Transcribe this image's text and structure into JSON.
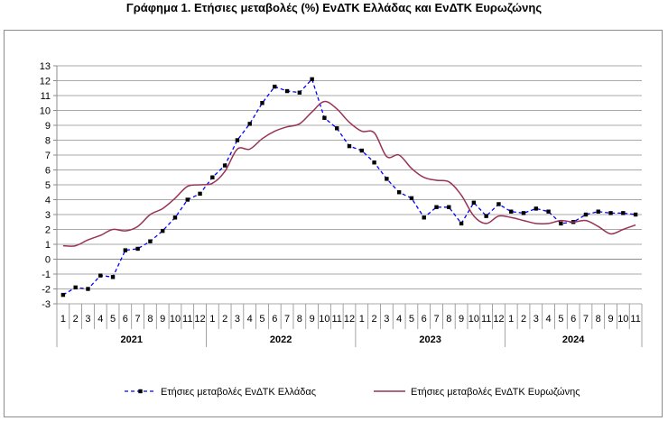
{
  "chart_data": {
    "type": "line",
    "title": "Γράφημα 1. Ετήσιες μεταβολές (%) ΕνΔΤΚ Ελλάδας και ΕνΔΤΚ Ευρωζώνης",
    "xlabel": "",
    "ylabel": "",
    "ylim": [
      -3,
      13
    ],
    "yticks": [
      -3,
      -2,
      -1,
      0,
      1,
      2,
      3,
      4,
      5,
      6,
      7,
      8,
      9,
      10,
      11,
      12,
      13
    ],
    "grid": true,
    "legend_position": "bottom",
    "categories": [
      "1",
      "2",
      "3",
      "4",
      "5",
      "6",
      "7",
      "8",
      "9",
      "10",
      "11",
      "12",
      "1",
      "2",
      "3",
      "4",
      "5",
      "6",
      "7",
      "8",
      "9",
      "10",
      "11",
      "12",
      "1",
      "2",
      "3",
      "4",
      "5",
      "6",
      "7",
      "8",
      "9",
      "10",
      "11",
      "12",
      "1",
      "2",
      "3",
      "4",
      "5",
      "6",
      "7",
      "8",
      "9",
      "10",
      "11"
    ],
    "year_groups": [
      {
        "label": "2021",
        "count": 12
      },
      {
        "label": "2022",
        "count": 12
      },
      {
        "label": "2023",
        "count": 12
      },
      {
        "label": "2024",
        "count": 11
      }
    ],
    "series": [
      {
        "name": "Ετήσιες μεταβολές ΕνΔΤΚ Ελλάδας",
        "color": "#0000ff",
        "style": "dashed-markers",
        "values": [
          -2.4,
          -1.9,
          -2.0,
          -1.1,
          -1.2,
          0.6,
          0.7,
          1.2,
          1.9,
          2.8,
          4.0,
          4.4,
          5.5,
          6.3,
          8.0,
          9.1,
          10.5,
          11.6,
          11.3,
          11.2,
          12.1,
          9.5,
          8.8,
          7.6,
          7.3,
          6.5,
          5.4,
          4.5,
          4.1,
          2.8,
          3.5,
          3.5,
          2.4,
          3.8,
          2.9,
          3.7,
          3.2,
          3.1,
          3.4,
          3.2,
          2.4,
          2.5,
          3.0,
          3.2,
          3.1,
          3.1,
          3.0
        ]
      },
      {
        "name": "Ετήσιες μεταβολές ΕνΔΤΚ Ευρωζώνης",
        "color": "#993355",
        "style": "solid",
        "values": [
          0.9,
          0.9,
          1.3,
          1.6,
          2.0,
          1.9,
          2.2,
          3.0,
          3.4,
          4.1,
          4.9,
          5.0,
          5.1,
          5.9,
          7.4,
          7.4,
          8.1,
          8.6,
          8.9,
          9.1,
          9.9,
          10.6,
          10.1,
          9.2,
          8.6,
          8.5,
          6.9,
          7.0,
          6.1,
          5.5,
          5.3,
          5.2,
          4.3,
          2.9,
          2.4,
          2.9,
          2.8,
          2.6,
          2.4,
          2.4,
          2.6,
          2.5,
          2.6,
          2.2,
          1.7,
          2.0,
          2.3
        ]
      }
    ]
  }
}
